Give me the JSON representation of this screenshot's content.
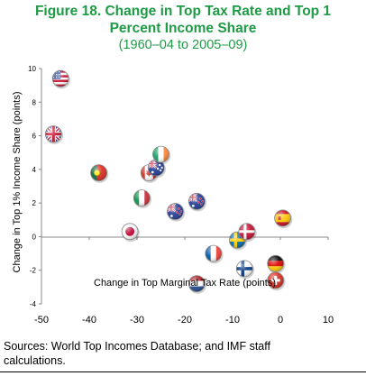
{
  "header": {
    "title_line1": "Figure 18. Change in Top Tax Rate and Top 1",
    "title_line2": "Percent Income Share",
    "subtitle": "(1960–04 to 2005–09)"
  },
  "source": {
    "line1": "Sources: World Top Incomes Database; and IMF staff",
    "line2": "calculations."
  },
  "chart_data": {
    "type": "scatter",
    "xlabel": "Change in Top Marginal Tax Rate (points)",
    "ylabel": "Change in Top 1% Income Share (points)",
    "xlim": [
      -50,
      10
    ],
    "ylim": [
      -4,
      10
    ],
    "xticks": [
      -50,
      -40,
      -30,
      -20,
      -10,
      0,
      10
    ],
    "yticks": [
      -4,
      -2,
      0,
      2,
      4,
      6,
      8,
      10
    ],
    "grid": false,
    "marker_style": "country flag",
    "points": [
      {
        "flag": "united-states",
        "x": -46,
        "y": 9.4
      },
      {
        "flag": "united-kingdom",
        "x": -47.5,
        "y": 6.1
      },
      {
        "flag": "portugal",
        "x": -38,
        "y": 3.8
      },
      {
        "flag": "canada",
        "x": -27.5,
        "y": 3.8
      },
      {
        "flag": "australia",
        "x": -26,
        "y": 4.1
      },
      {
        "flag": "ireland",
        "x": -25,
        "y": 4.9
      },
      {
        "flag": "italy",
        "x": -29,
        "y": 2.3
      },
      {
        "flag": "new-zealand",
        "x": -22,
        "y": 1.5
      },
      {
        "flag": "new-zealand",
        "x": -17.5,
        "y": 2.1
      },
      {
        "flag": "japan",
        "x": -31.5,
        "y": 0.3
      },
      {
        "flag": "france",
        "x": -14,
        "y": -1.0
      },
      {
        "flag": "netherlands",
        "x": -17.5,
        "y": -2.8
      },
      {
        "flag": "sweden",
        "x": -9,
        "y": -0.2
      },
      {
        "flag": "denmark",
        "x": -7,
        "y": 0.3
      },
      {
        "flag": "finland",
        "x": -7.5,
        "y": -1.9
      },
      {
        "flag": "spain",
        "x": 0.5,
        "y": 1.1
      },
      {
        "flag": "germany",
        "x": -1,
        "y": -1.6
      },
      {
        "flag": "switzerland",
        "x": -1,
        "y": -2.6
      }
    ]
  }
}
